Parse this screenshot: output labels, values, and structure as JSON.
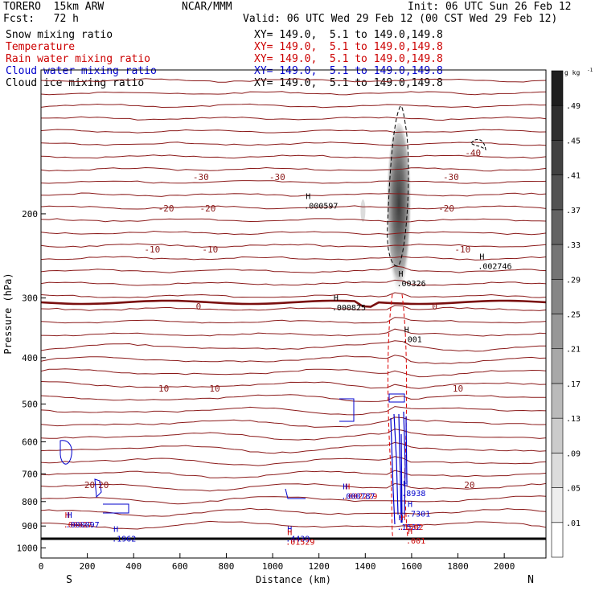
{
  "header": {
    "model": "TORERO  15km ARW",
    "org": "NCAR/MMM",
    "init": "Init: 06 UTC Sun 26 Feb 12",
    "fcst": "Fcst:   72 h",
    "valid": "Valid: 06 UTC Wed 29 Feb 12 (00 CST Wed 29 Feb 12)"
  },
  "legend": [
    {
      "label": "Snow mixing ratio",
      "xy": "XY= 149.0,  5.1 to 149.0,149.8",
      "color": "#000000"
    },
    {
      "label": "Temperature",
      "xy": "XY= 149.0,  5.1 to 149.0,149.8",
      "color": "#cc0000"
    },
    {
      "label": "Rain water mixing ratio",
      "xy": "XY= 149.0,  5.1 to 149.0,149.8",
      "color": "#cc0000"
    },
    {
      "label": "Cloud water mixing ratio",
      "xy": "XY= 149.0,  5.1 to 149.0,149.8",
      "color": "#0000cc"
    },
    {
      "label": "Cloud ice mixing ratio",
      "xy": "XY= 149.0,  5.1 to 149.0,149.8",
      "color": "#000000"
    }
  ],
  "chart_data": {
    "type": "contour",
    "xlabel": "Distance (km)",
    "ylabel": "Pressure (hPa)",
    "xlim": [
      0,
      2180
    ],
    "ylim": [
      1050,
      100
    ],
    "y_log": true,
    "x_ticks": [
      0,
      200,
      400,
      600,
      800,
      1000,
      1200,
      1400,
      1600,
      1800,
      2000
    ],
    "y_ticks": [
      200,
      300,
      400,
      500,
      600,
      700,
      800,
      900,
      1000
    ],
    "x_end_labels": {
      "left": "S",
      "right": "N"
    },
    "colorbar": {
      "unit": "g kg",
      "unit_exp": "-1",
      "labels": [
        ".01",
        ".05",
        ".09",
        ".13",
        ".17",
        ".21",
        ".25",
        ".29",
        ".33",
        ".37",
        ".41",
        ".45",
        ".49"
      ],
      "levels": [
        0.01,
        0.05,
        0.09,
        0.13,
        0.17,
        0.21,
        0.25,
        0.29,
        0.33,
        0.37,
        0.41,
        0.45,
        0.49
      ]
    },
    "temperature_contours_C": [
      {
        "value": -40,
        "labels_x": [
          1865
        ]
      },
      {
        "value": -30,
        "labels_x": [
          690,
          1020,
          1770
        ]
      },
      {
        "value": -20,
        "labels_x": [
          540,
          720,
          1750
        ]
      },
      {
        "value": -10,
        "labels_x": [
          480,
          730,
          1820
        ]
      },
      {
        "value": 0,
        "labels_x": [
          680,
          1700
        ],
        "bold": true
      },
      {
        "value": 10,
        "labels_x": [
          530,
          750,
          1800
        ]
      },
      {
        "value": 20,
        "labels_x": [
          210,
          270,
          1850
        ]
      }
    ],
    "temperature_label_text": {
      "-40": "-40",
      "-30": "-30",
      "-20": "-20",
      "-10": "-10",
      "0": "0",
      "10": "10",
      "20": "20"
    },
    "maxima": [
      {
        "text": ".000597",
        "x": 1150,
        "p": 193,
        "color": "#000000"
      },
      {
        "text": ".00326",
        "x": 1550,
        "p": 280,
        "color": "#000000"
      },
      {
        "text": ".002746",
        "x": 1900,
        "p": 258,
        "color": "#000000"
      },
      {
        "text": ".000825",
        "x": 1270,
        "p": 315,
        "color": "#000000"
      },
      {
        "text": ".001",
        "x": 1575,
        "p": 367,
        "color": "#000000"
      },
      {
        "text": ".002229",
        "x": 1320,
        "p": 780,
        "color": "#cc0000"
      },
      {
        "text": ".000787",
        "x": 1310,
        "p": 780,
        "color": "#0000cc"
      },
      {
        "text": ".8938",
        "x": 1570,
        "p": 770,
        "color": "#0000cc"
      },
      {
        "text": ".7301",
        "x": 1590,
        "p": 850,
        "color": "#0000cc"
      },
      {
        "text": ".00027",
        "x": 110,
        "p": 895,
        "color": "#cc0000"
      },
      {
        "text": ".000097",
        "x": 120,
        "p": 895,
        "color": "#0000cc"
      },
      {
        "text": ".1962",
        "x": 320,
        "p": 958,
        "color": "#0000cc"
      },
      {
        "text": ".4439",
        "x": 1070,
        "p": 958,
        "color": "#0000cc"
      },
      {
        "text": ".01529",
        "x": 1070,
        "p": 973,
        "color": "#cc0000"
      },
      {
        "text": ".1532",
        "x": 1550,
        "p": 907,
        "color": "#0000cc"
      },
      {
        "text": ".1502",
        "x": 1560,
        "p": 907,
        "color": "#cc0000"
      },
      {
        "text": ".001",
        "x": 1590,
        "p": 968,
        "color": "#cc0000"
      }
    ],
    "h_marks_text": "H"
  }
}
